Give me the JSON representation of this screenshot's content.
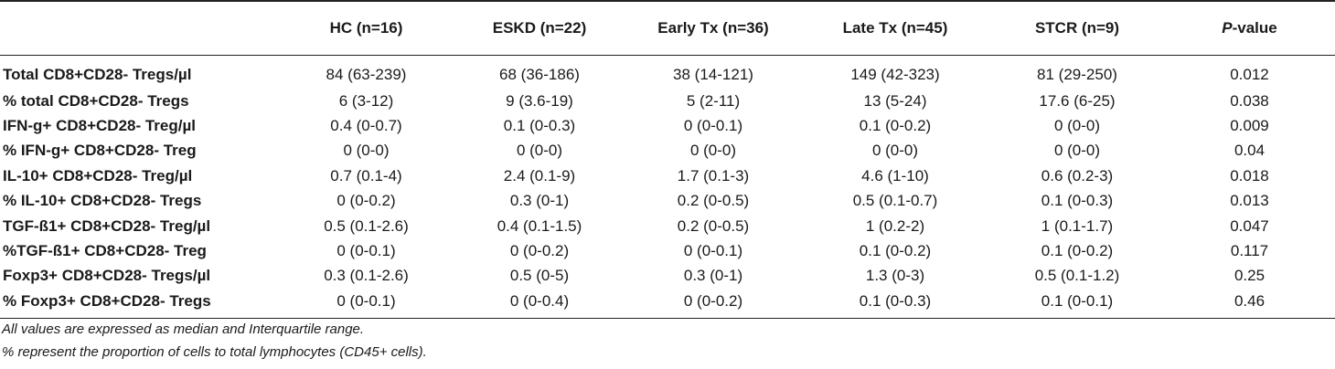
{
  "table": {
    "headers": [
      "",
      "HC (n=16)",
      "ESKD (n=22)",
      "Early Tx (n=36)",
      "Late Tx (n=45)",
      "STCR (n=9)"
    ],
    "pvalue_header": {
      "italic_part": "P",
      "rest": "-value"
    },
    "rows": [
      {
        "label": "Total CD8+CD28- Tregs/µl",
        "values": [
          "84 (63-239)",
          "68 (36-186)",
          "38 (14-121)",
          "149 (42-323)",
          "81 (29-250)",
          "0.012"
        ]
      },
      {
        "label": "% total CD8+CD28- Tregs",
        "values": [
          "6 (3-12)",
          "9 (3.6-19)",
          "5 (2-11)",
          "13 (5-24)",
          "17.6 (6-25)",
          "0.038"
        ]
      },
      {
        "label": "IFN-g+ CD8+CD28- Treg/µl",
        "values": [
          "0.4 (0-0.7)",
          "0.1 (0-0.3)",
          "0 (0-0.1)",
          "0.1 (0-0.2)",
          "0 (0-0)",
          "0.009"
        ]
      },
      {
        "label": "% IFN-g+ CD8+CD28- Treg",
        "values": [
          "0 (0-0)",
          "0 (0-0)",
          "0 (0-0)",
          "0 (0-0)",
          "0 (0-0)",
          "0.04"
        ]
      },
      {
        "label": "IL-10+ CD8+CD28- Treg/µl",
        "values": [
          "0.7 (0.1-4)",
          "2.4 (0.1-9)",
          "1.7 (0.1-3)",
          "4.6 (1-10)",
          "0.6 (0.2-3)",
          "0.018"
        ]
      },
      {
        "label": "% IL-10+ CD8+CD28- Tregs",
        "values": [
          "0 (0-0.2)",
          "0.3 (0-1)",
          "0.2 (0-0.5)",
          "0.5 (0.1-0.7)",
          "0.1 (0-0.3)",
          "0.013"
        ]
      },
      {
        "label": "TGF-ß1+ CD8+CD28- Treg/µl",
        "values": [
          "0.5 (0.1-2.6)",
          "0.4 (0.1-1.5)",
          "0.2 (0-0.5)",
          "1 (0.2-2)",
          "1 (0.1-1.7)",
          "0.047"
        ]
      },
      {
        "label": "%TGF-ß1+ CD8+CD28- Treg",
        "values": [
          "0 (0-0.1)",
          "0 (0-0.2)",
          "0 (0-0.1)",
          "0.1 (0-0.2)",
          "0.1 (0-0.2)",
          "0.117"
        ]
      },
      {
        "label": "Foxp3+ CD8+CD28- Tregs/µl",
        "values": [
          "0.3 (0.1-2.6)",
          "0.5 (0-5)",
          "0.3 (0-1)",
          "1.3 (0-3)",
          "0.5 (0.1-1.2)",
          "0.25"
        ]
      },
      {
        "label": "% Foxp3+ CD8+CD28- Tregs",
        "values": [
          "0 (0-0.1)",
          "0 (0-0.4)",
          "0 (0-0.2)",
          "0.1 (0-0.3)",
          "0.1 (0-0.1)",
          "0.46"
        ]
      }
    ]
  },
  "footnotes": [
    "All values are expressed as median and Interquartile range.",
    "% represent the proportion of cells to total lymphocytes (CD45+ cells)."
  ]
}
